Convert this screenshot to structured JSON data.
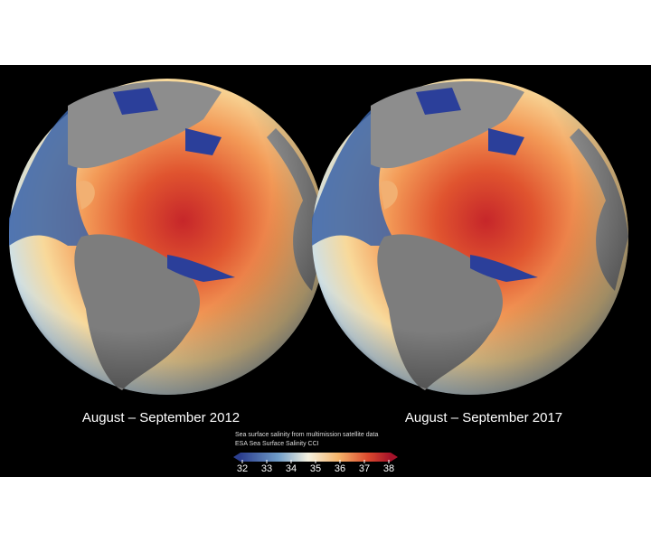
{
  "panels": [
    {
      "caption": "August – September 2012"
    },
    {
      "caption": "August – September 2017"
    }
  ],
  "colorbar": {
    "title": "Sea surface salinity from multimission satellite data",
    "credit": "ESA Sea Surface Salinity CCI",
    "ticks": [
      32,
      33,
      34,
      35,
      36,
      37,
      38
    ]
  }
}
